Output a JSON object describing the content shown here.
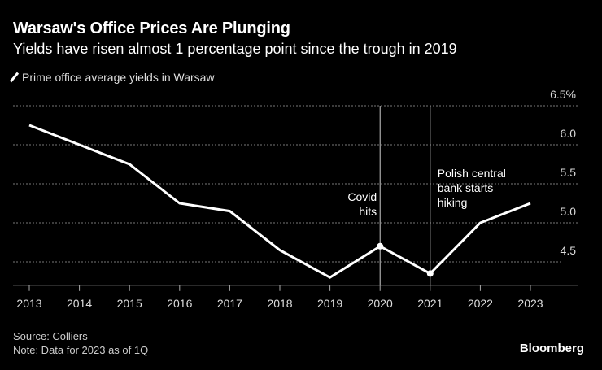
{
  "title": "Warsaw's Office Prices Are Plunging",
  "subtitle": "Yields have risen almost 1 percentage point since the trough in 2019",
  "source": "Source: Colliers",
  "note": "Note: Data for 2023 as of 1Q",
  "brand": "Bloomberg",
  "chart_data": {
    "type": "line",
    "title": "Warsaw's Office Prices Are Plunging",
    "subtitle": "Yields have risen almost 1 percentage point since the trough in 2019",
    "x": [
      2013,
      2014,
      2015,
      2016,
      2017,
      2018,
      2019,
      2020,
      2021,
      2022,
      2023
    ],
    "series": [
      {
        "name": "Prime office average yields in Warsaw",
        "values": [
          6.25,
          6.0,
          5.75,
          5.25,
          5.15,
          4.65,
          4.3,
          4.7,
          4.35,
          5.0,
          5.25
        ],
        "color": "#ffffff"
      }
    ],
    "yticks": [
      "6.5%",
      "6.0",
      "5.5",
      "5.0",
      "4.5"
    ],
    "ytick_values": [
      6.5,
      6.0,
      5.5,
      5.0,
      4.5
    ],
    "ylim": [
      4.2,
      6.5
    ],
    "y_axis_side": "right",
    "grid": true,
    "legend": "top-left",
    "annotations": [
      {
        "x": 2020,
        "lines": [
          "Covid",
          "hits"
        ]
      },
      {
        "x": 2021,
        "lines": [
          "Polish central",
          "bank starts",
          "hiking"
        ]
      }
    ]
  }
}
